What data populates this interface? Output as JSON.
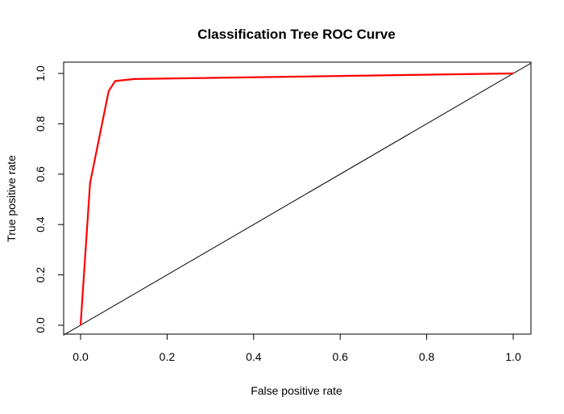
{
  "chart_data": {
    "type": "line",
    "title": "Classification Tree ROC Curve",
    "xlabel": "False positive rate",
    "ylabel": "True positive rate",
    "xlim": [
      0.0,
      1.0
    ],
    "ylim": [
      0.0,
      1.0
    ],
    "x_ticks": [
      "0.0",
      "0.2",
      "0.4",
      "0.6",
      "0.8",
      "1.0"
    ],
    "y_ticks": [
      "0.0",
      "0.2",
      "0.4",
      "0.6",
      "0.8",
      "1.0"
    ],
    "grid": false,
    "legend": "none",
    "series": [
      {
        "color": "#ff0000",
        "x": [
          0.0,
          0.022,
          0.065,
          0.08,
          0.125,
          1.0
        ],
        "y": [
          0.0,
          0.565,
          0.93,
          0.97,
          0.978,
          1.0
        ]
      }
    ],
    "reference_line": {
      "color": "#000000",
      "x": [
        0.0,
        1.0
      ],
      "y": [
        0.0,
        1.0
      ]
    }
  }
}
